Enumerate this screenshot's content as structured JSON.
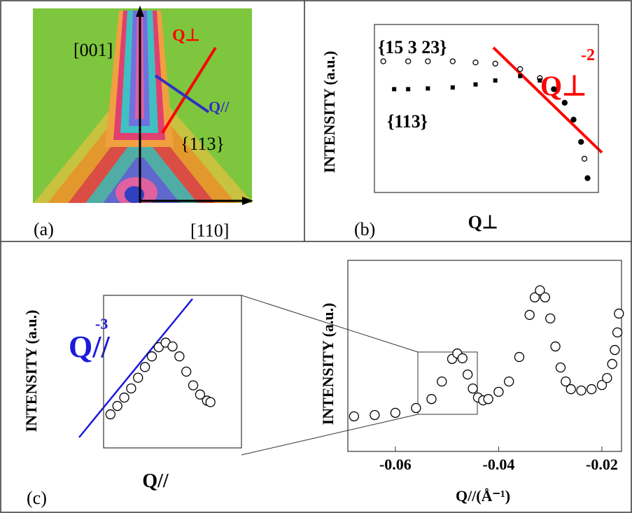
{
  "panel_a": {
    "label": "(a)",
    "axis_vertical": "[001]",
    "axis_horizontal": "[110]",
    "q_perp": "Q⊥",
    "q_par": "Q//",
    "reflection": "{113}"
  },
  "chart_data": [
    {
      "type": "scatter",
      "panel_label": "(b)",
      "x_label": "Q⊥",
      "y_label": "INTENSITY (a.u.)",
      "xscale": "log",
      "yscale": "log",
      "xlim": [
        0.01,
        1
      ],
      "ylim": [
        0.001,
        1
      ],
      "series": [
        {
          "name": "{15 3 23}",
          "marker": "circle",
          "color": "#000000",
          "x": [
            0.012,
            0.02,
            0.03,
            0.05,
            0.08,
            0.12,
            0.2,
            0.3,
            0.4,
            0.5,
            0.6,
            0.7,
            0.75,
            0.8
          ],
          "values": [
            0.22,
            0.22,
            0.22,
            0.22,
            0.21,
            0.2,
            0.16,
            0.11,
            0.07,
            0.04,
            0.02,
            0.008,
            0.004,
            0.0018
          ]
        },
        {
          "name": "{113}",
          "marker": "square",
          "color": "#000000",
          "x": [
            0.015,
            0.02,
            0.03,
            0.05,
            0.08,
            0.12,
            0.2,
            0.3,
            0.4,
            0.5,
            0.6,
            0.7,
            0.8
          ],
          "values": [
            0.07,
            0.07,
            0.072,
            0.075,
            0.085,
            0.1,
            0.12,
            0.1,
            0.07,
            0.04,
            0.02,
            0.008,
            0.0018
          ]
        }
      ],
      "fit_label": {
        "text": "Q⊥",
        "exponent": -2,
        "color": "#ff0000"
      }
    },
    {
      "type": "scatter",
      "panel_label": "(c)",
      "x_label": "Q//",
      "y_label": "INTENSITY (a.u.)",
      "xlim": [
        0,
        1
      ],
      "ylim": [
        0,
        1
      ],
      "series": [
        {
          "marker": "circle",
          "color": "#000000",
          "x": [
            0.05,
            0.1,
            0.15,
            0.2,
            0.25,
            0.3,
            0.35,
            0.4,
            0.45,
            0.5,
            0.55,
            0.6,
            0.65,
            0.7,
            0.75,
            0.775
          ],
          "values": [
            0.22,
            0.275,
            0.33,
            0.39,
            0.46,
            0.53,
            0.6,
            0.66,
            0.69,
            0.665,
            0.6,
            0.5,
            0.41,
            0.35,
            0.31,
            0.3
          ]
        }
      ],
      "fit_label": {
        "text": "Q//",
        "exponent": -3,
        "color": "#1a1adc"
      }
    },
    {
      "type": "scatter",
      "x_label": "Q//(Å⁻¹)",
      "y_label": "INTENSITY (a.u.)",
      "xlim": [
        -0.0692,
        -0.0162
      ],
      "ylim": [
        0.128,
        1
      ],
      "xticks": [
        -0.06,
        -0.04,
        -0.02
      ],
      "series": [
        {
          "marker": "circle",
          "color": "#000000",
          "x": [
            -0.068,
            -0.064,
            -0.06,
            -0.056,
            -0.053,
            -0.051,
            -0.049,
            -0.048,
            -0.047,
            -0.046,
            -0.045,
            -0.044,
            -0.043,
            -0.042,
            -0.04,
            -0.038,
            -0.036,
            -0.034,
            -0.033,
            -0.032,
            -0.031,
            -0.03,
            -0.029,
            -0.028,
            -0.027,
            -0.026,
            -0.024,
            -0.022,
            -0.02,
            -0.019,
            -0.018,
            -0.0175,
            -0.017,
            -0.0167
          ],
          "values": [
            0.288,
            0.294,
            0.304,
            0.326,
            0.367,
            0.447,
            0.55,
            0.575,
            0.553,
            0.479,
            0.415,
            0.374,
            0.361,
            0.367,
            0.4,
            0.447,
            0.559,
            0.751,
            0.831,
            0.863,
            0.831,
            0.735,
            0.607,
            0.511,
            0.447,
            0.412,
            0.406,
            0.412,
            0.431,
            0.463,
            0.527,
            0.591,
            0.671,
            0.757
          ]
        }
      ]
    }
  ]
}
